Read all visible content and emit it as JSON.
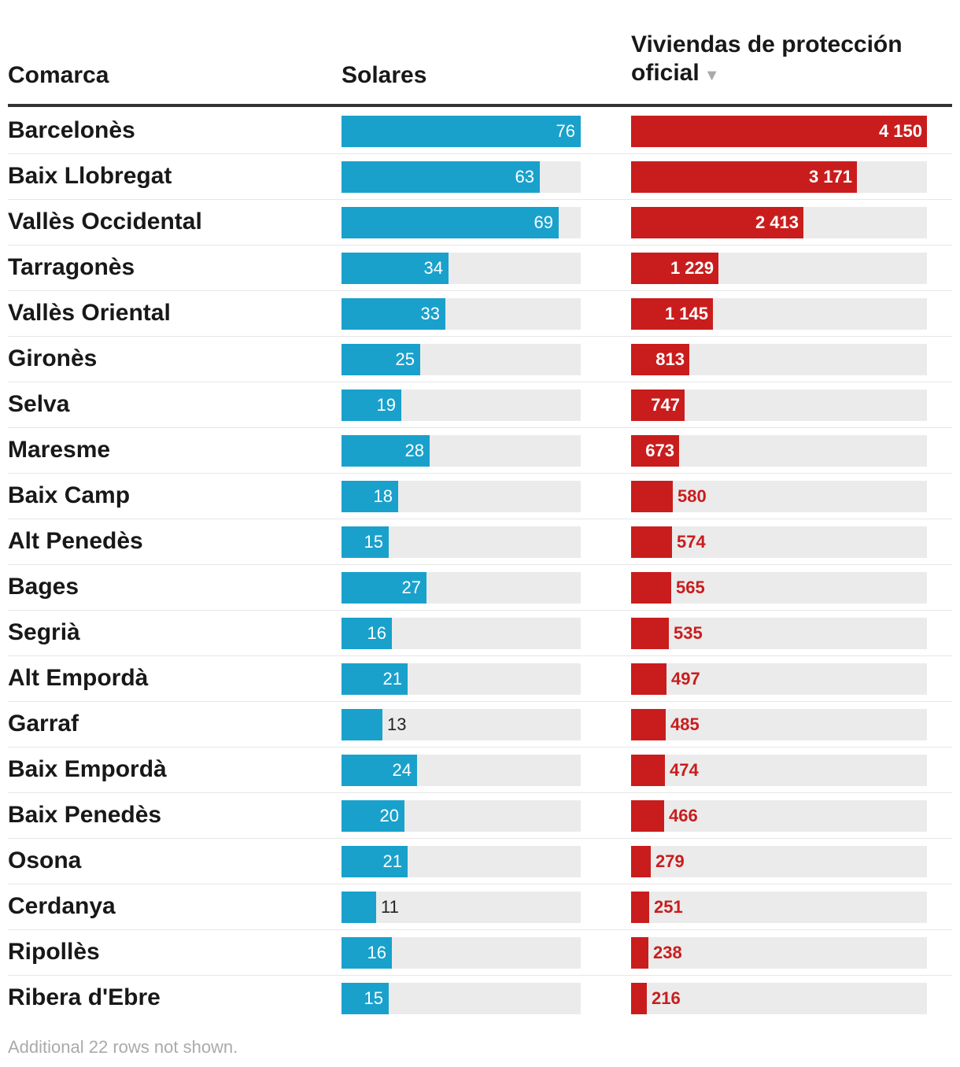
{
  "header": {
    "comarca": "Comarca",
    "solares": "Solares",
    "viviendas": "Viviendas de protección oficial",
    "sort_indicator": "▼"
  },
  "footer": {
    "note": "Additional 22 rows not shown."
  },
  "colors": {
    "solares": "#19a1cc",
    "viviendas": "#c91d1d",
    "track": "#ebebeb"
  },
  "chart_data": {
    "type": "table",
    "columns": [
      "Comarca",
      "Solares",
      "Viviendas de protección oficial"
    ],
    "solares_max": 76,
    "viviendas_max": 4150,
    "rows": [
      {
        "comarca": "Barcelonès",
        "solares": 76,
        "solares_label": "76",
        "viviendas": 4150,
        "viviendas_label": "4 150"
      },
      {
        "comarca": "Baix Llobregat",
        "solares": 63,
        "solares_label": "63",
        "viviendas": 3171,
        "viviendas_label": "3 171"
      },
      {
        "comarca": "Vallès Occidental",
        "solares": 69,
        "solares_label": "69",
        "viviendas": 2413,
        "viviendas_label": "2 413"
      },
      {
        "comarca": "Tarragonès",
        "solares": 34,
        "solares_label": "34",
        "viviendas": 1229,
        "viviendas_label": "1 229"
      },
      {
        "comarca": "Vallès Oriental",
        "solares": 33,
        "solares_label": "33",
        "viviendas": 1145,
        "viviendas_label": "1 145"
      },
      {
        "comarca": "Gironès",
        "solares": 25,
        "solares_label": "25",
        "viviendas": 813,
        "viviendas_label": "813"
      },
      {
        "comarca": "Selva",
        "solares": 19,
        "solares_label": "19",
        "viviendas": 747,
        "viviendas_label": "747"
      },
      {
        "comarca": "Maresme",
        "solares": 28,
        "solares_label": "28",
        "viviendas": 673,
        "viviendas_label": "673"
      },
      {
        "comarca": "Baix Camp",
        "solares": 18,
        "solares_label": "18",
        "viviendas": 580,
        "viviendas_label": "580"
      },
      {
        "comarca": "Alt Penedès",
        "solares": 15,
        "solares_label": "15",
        "viviendas": 574,
        "viviendas_label": "574"
      },
      {
        "comarca": "Bages",
        "solares": 27,
        "solares_label": "27",
        "viviendas": 565,
        "viviendas_label": "565"
      },
      {
        "comarca": "Segrià",
        "solares": 16,
        "solares_label": "16",
        "viviendas": 535,
        "viviendas_label": "535"
      },
      {
        "comarca": "Alt Empordà",
        "solares": 21,
        "solares_label": "21",
        "viviendas": 497,
        "viviendas_label": "497"
      },
      {
        "comarca": "Garraf",
        "solares": 13,
        "solares_label": "13",
        "viviendas": 485,
        "viviendas_label": "485"
      },
      {
        "comarca": "Baix Empordà",
        "solares": 24,
        "solares_label": "24",
        "viviendas": 474,
        "viviendas_label": "474"
      },
      {
        "comarca": "Baix Penedès",
        "solares": 20,
        "solares_label": "20",
        "viviendas": 466,
        "viviendas_label": "466"
      },
      {
        "comarca": "Osona",
        "solares": 21,
        "solares_label": "21",
        "viviendas": 279,
        "viviendas_label": "279"
      },
      {
        "comarca": "Cerdanya",
        "solares": 11,
        "solares_label": "11",
        "viviendas": 251,
        "viviendas_label": "251"
      },
      {
        "comarca": "Ripollès",
        "solares": 16,
        "solares_label": "16",
        "viviendas": 238,
        "viviendas_label": "238"
      },
      {
        "comarca": "Ribera d'Ebre",
        "solares": 15,
        "solares_label": "15",
        "viviendas": 216,
        "viviendas_label": "216"
      }
    ]
  }
}
